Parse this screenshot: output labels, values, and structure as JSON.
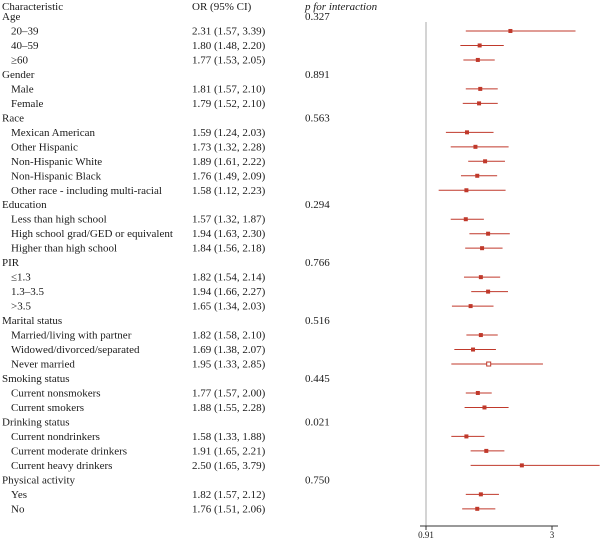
{
  "headers": {
    "characteristic": "Characteristic",
    "or": "OR (95% CI)",
    "p": "p for interaction"
  },
  "chart_data": {
    "type": "forest",
    "x_axis": {
      "min": 0.91,
      "max": 3,
      "ticks": [
        "0.91",
        "3"
      ],
      "reference_line": 0.91
    },
    "colors": {
      "marker": "#c0392b",
      "ci_line": "#c0392b",
      "axis": "#333333",
      "ref_line": "#aaaaaa"
    },
    "groups": [
      {
        "label": "Age",
        "p": "0.327",
        "rows": [
          {
            "label": "20–39",
            "or_text": "2.31 (1.57, 3.39)",
            "or": 2.31,
            "lo": 1.57,
            "hi": 3.39
          },
          {
            "label": "40–59",
            "or_text": "1.80 (1.48, 2.20)",
            "or": 1.8,
            "lo": 1.48,
            "hi": 2.2
          },
          {
            "label": "≥60",
            "or_text": "1.77 (1.53, 2.05)",
            "or": 1.77,
            "lo": 1.53,
            "hi": 2.05
          }
        ]
      },
      {
        "label": "Gender",
        "p": "0.891",
        "rows": [
          {
            "label": "Male",
            "or_text": "1.81 (1.57, 2.10)",
            "or": 1.81,
            "lo": 1.57,
            "hi": 2.1
          },
          {
            "label": "Female",
            "or_text": "1.79 (1.52, 2.10)",
            "or": 1.79,
            "lo": 1.52,
            "hi": 2.1
          }
        ]
      },
      {
        "label": "Race",
        "p": "0.563",
        "rows": [
          {
            "label": "Mexican American",
            "or_text": "1.59 (1.24, 2.03)",
            "or": 1.59,
            "lo": 1.24,
            "hi": 2.03
          },
          {
            "label": "Other Hispanic",
            "or_text": "1.73 (1.32, 2.28)",
            "or": 1.73,
            "lo": 1.32,
            "hi": 2.28
          },
          {
            "label": "Non-Hispanic White",
            "or_text": "1.89 (1.61, 2.22)",
            "or": 1.89,
            "lo": 1.61,
            "hi": 2.22
          },
          {
            "label": "Non-Hispanic Black",
            "or_text": "1.76 (1.49, 2.09)",
            "or": 1.76,
            "lo": 1.49,
            "hi": 2.09
          },
          {
            "label": "Other race - including multi-racial",
            "or_text": "1.58 (1.12, 2.23)",
            "or": 1.58,
            "lo": 1.12,
            "hi": 2.23
          }
        ]
      },
      {
        "label": "Education",
        "p": "0.294",
        "rows": [
          {
            "label": "Less than high school",
            "or_text": "1.57 (1.32, 1.87)",
            "or": 1.57,
            "lo": 1.32,
            "hi": 1.87
          },
          {
            "label": "High school grad/GED or equivalent",
            "or_text": "1.94 (1.63, 2.30)",
            "or": 1.94,
            "lo": 1.63,
            "hi": 2.3
          },
          {
            "label": "Higher than high school",
            "or_text": "1.84 (1.56, 2.18)",
            "or": 1.84,
            "lo": 1.56,
            "hi": 2.18
          }
        ]
      },
      {
        "label": "PIR",
        "p": "0.766",
        "rows": [
          {
            "label": "≤1.3",
            "or_text": "1.82 (1.54, 2.14)",
            "or": 1.82,
            "lo": 1.54,
            "hi": 2.14
          },
          {
            "label": "1.3–3.5",
            "or_text": "1.94 (1.66, 2.27)",
            "or": 1.94,
            "lo": 1.66,
            "hi": 2.27
          },
          {
            "label": ">3.5",
            "or_text": "1.65 (1.34, 2.03)",
            "or": 1.65,
            "lo": 1.34,
            "hi": 2.03
          }
        ]
      },
      {
        "label": "Marital status",
        "p": "0.516",
        "rows": [
          {
            "label": "Married/living with partner",
            "or_text": "1.82 (1.58, 2.10)",
            "or": 1.82,
            "lo": 1.58,
            "hi": 2.1
          },
          {
            "label": "Widowed/divorced/separated",
            "or_text": "1.69 (1.38, 2.07)",
            "or": 1.69,
            "lo": 1.38,
            "hi": 2.07
          },
          {
            "label": "Never married",
            "or_text": "1.95 (1.33, 2.85)",
            "or": 1.95,
            "lo": 1.33,
            "hi": 2.85,
            "hollow": true
          }
        ]
      },
      {
        "label": "Smoking status",
        "p": "0.445",
        "rows": [
          {
            "label": "Current nonsmokers",
            "or_text": "1.77 (1.57, 2.00)",
            "or": 1.77,
            "lo": 1.57,
            "hi": 2.0
          },
          {
            "label": "Current smokers",
            "or_text": "1.88 (1.55, 2.28)",
            "or": 1.88,
            "lo": 1.55,
            "hi": 2.28
          }
        ]
      },
      {
        "label": "Drinking status",
        "p": "0.021",
        "rows": [
          {
            "label": "Current nondrinkers",
            "or_text": "1.58 (1.33, 1.88)",
            "or": 1.58,
            "lo": 1.33,
            "hi": 1.88
          },
          {
            "label": "Current moderate drinkers",
            "or_text": "1.91 (1.65, 2.21)",
            "or": 1.91,
            "lo": 1.65,
            "hi": 2.21
          },
          {
            "label": "Current heavy drinkers",
            "or_text": "2.50 (1.65, 3.79)",
            "or": 2.5,
            "lo": 1.65,
            "hi": 3.79
          }
        ]
      },
      {
        "label": "Physical activity",
        "p": "0.750",
        "rows": [
          {
            "label": "Yes",
            "or_text": "1.82 (1.57, 2.12)",
            "or": 1.82,
            "lo": 1.57,
            "hi": 2.12
          },
          {
            "label": "No",
            "or_text": "1.76 (1.51, 2.06)",
            "or": 1.76,
            "lo": 1.51,
            "hi": 2.06
          }
        ]
      }
    ]
  }
}
